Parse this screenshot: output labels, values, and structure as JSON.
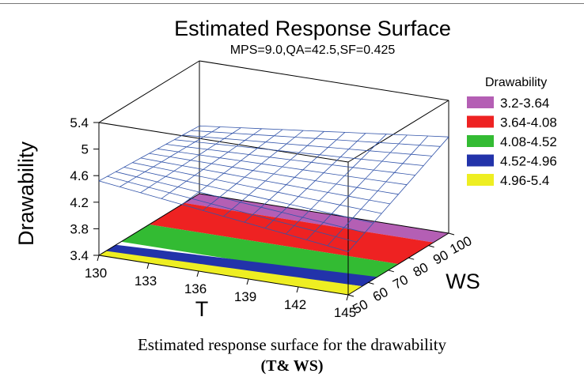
{
  "chart_data": {
    "type": "surface3d",
    "title": "Estimated Response Surface",
    "subtitle": "MPS=9.0,QA=42.5,SF=0.425",
    "zlabel": "Drawability",
    "xlabel": "T",
    "ylabel": "WS",
    "x_ticks": [
      "130",
      "133",
      "136",
      "139",
      "142",
      "145"
    ],
    "y_ticks": [
      "50",
      "60",
      "70",
      "80",
      "90",
      "100"
    ],
    "z_ticks": [
      "3.4",
      "3.8",
      "4.2",
      "4.6",
      "5",
      "5.4"
    ],
    "xlim": [
      130,
      145
    ],
    "ylim": [
      50,
      100
    ],
    "zlim": [
      3.4,
      5.4
    ],
    "surface_corners": {
      "T130_WS50": 4.52,
      "T145_WS50": 4.05,
      "T130_WS100": 4.42,
      "T145_WS100": 4.85
    },
    "grid_divisions": 12,
    "legend": {
      "title": "Drawability",
      "placement": "right",
      "items": [
        {
          "label": "3.2-3.64",
          "color": "#b45fb4"
        },
        {
          "label": "3.64-4.08",
          "color": "#ee2222"
        },
        {
          "label": "4.08-4.52",
          "color": "#33bb33"
        },
        {
          "label": "4.52-4.96",
          "color": "#2233aa"
        },
        {
          "label": "4.96-5.4",
          "color": "#eeee22"
        }
      ]
    },
    "mesh_color": "#3355aa"
  },
  "caption": {
    "line1": "Estimated response surface for the drawability",
    "line2": "(T& WS)"
  }
}
